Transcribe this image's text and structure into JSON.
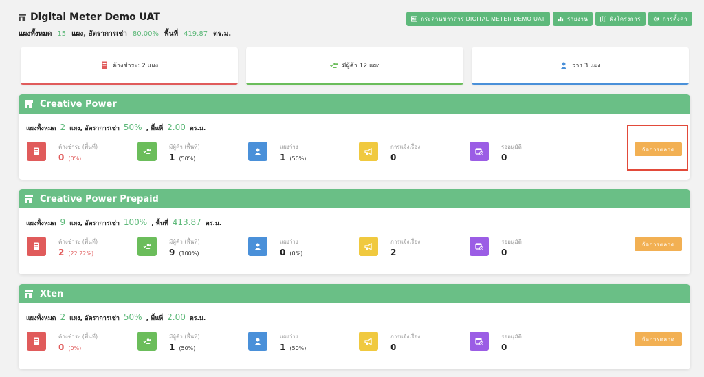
{
  "header": {
    "title": "Digital Meter Demo UAT",
    "summary": {
      "label_total": "แผงทั้งหมด",
      "total": "15",
      "label_rate": "แผง, อัตราการเช่า",
      "rate": "80.00%",
      "label_area": "พื้นที่",
      "area": "419.87",
      "unit": "ตร.ม."
    }
  },
  "top_buttons": [
    {
      "label": "กระดานข่าวสาร DIGITAL METER DEMO UAT",
      "icon": "newspaper-icon"
    },
    {
      "label": "รายงาน",
      "icon": "bar-chart-icon"
    },
    {
      "label": "ผังโครงการ",
      "icon": "map-icon"
    },
    {
      "label": "การตั้งค่า",
      "icon": "gear-icon"
    }
  ],
  "stat_cards": [
    {
      "label": "ค้างชำระ: 2 แผง",
      "icon": "invoice-icon",
      "color": "#e05b5b"
    },
    {
      "label": "มีผู้ค้า 12 แผง",
      "icon": "users-check-icon",
      "color": "#6bbd5b"
    },
    {
      "label": "ว่าง 3 แผง",
      "icon": "user-icon",
      "color": "#4a90d9"
    }
  ],
  "metric_labels": {
    "overdue": "ค้างชำระ (พื้นที่)",
    "occupied": "มีผู้ค้า (พื้นที่)",
    "vacant": "แผงว่าง",
    "complaints": "การแจ้งเรื่อง",
    "pending": "รออนุมัติ"
  },
  "manage_label": "จัดการตลาด",
  "markets": [
    {
      "name": "Creative Power",
      "total_label": "แผงทั้งหมด",
      "total": "2",
      "rate_label": "แผง, อัตราการเช่า",
      "rate": "50%",
      "area_label": ", พื้นที่",
      "area": "2.00",
      "unit": "ตร.ม.",
      "overdue": "0",
      "overdue_pct": "(0%)",
      "occupied": "1",
      "occupied_pct": "(50%)",
      "vacant": "1",
      "vacant_pct": "(50%)",
      "complaints": "0",
      "pending": "0"
    },
    {
      "name": "Creative Power Prepaid",
      "total_label": "แผงทั้งหมด",
      "total": "9",
      "rate_label": "แผง, อัตราการเช่า",
      "rate": "100%",
      "area_label": ", พื้นที่",
      "area": "413.87",
      "unit": "ตร.ม.",
      "overdue": "2",
      "overdue_pct": "(22.22%)",
      "occupied": "9",
      "occupied_pct": "(100%)",
      "vacant": "0",
      "vacant_pct": "(0%)",
      "complaints": "2",
      "pending": "0"
    },
    {
      "name": "Xten",
      "total_label": "แผงทั้งหมด",
      "total": "2",
      "rate_label": "แผง, อัตราการเช่า",
      "rate": "50%",
      "area_label": ", พื้นที่",
      "area": "2.00",
      "unit": "ตร.ม.",
      "overdue": "0",
      "overdue_pct": "(0%)",
      "occupied": "1",
      "occupied_pct": "(50%)",
      "vacant": "1",
      "vacant_pct": "(50%)",
      "complaints": "0",
      "pending": "0"
    }
  ]
}
